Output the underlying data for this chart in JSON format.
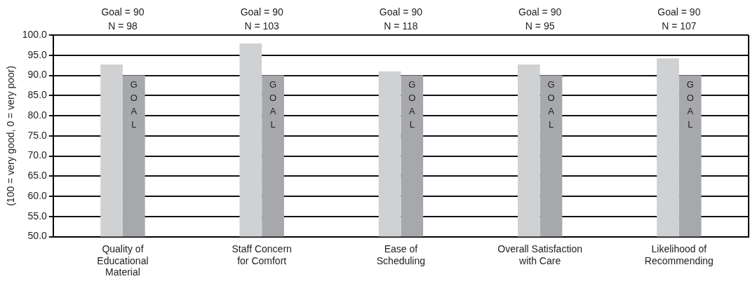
{
  "chart_data": {
    "type": "bar",
    "ylabel": "(100 = very good, 0 = very poor)",
    "categories": [
      "Quality of\nEducational\nMaterial",
      "Staff Concern\nfor Comfort",
      "Ease of\nScheduling",
      "Overall Satisfaction\nwith Care",
      "Likelihood of\nRecommending"
    ],
    "series": [
      {
        "color": "#d0d1d3",
        "values": [
          92.7,
          97.9,
          91.0,
          92.7,
          94.2
        ]
      },
      {
        "name": "GOAL",
        "color": "#a7a8ab",
        "values": [
          90,
          90,
          90,
          90,
          90
        ]
      }
    ],
    "ylim": [
      50,
      100
    ],
    "yticks": [
      {
        "value": 50,
        "label": "50.0"
      },
      {
        "value": 55,
        "label": "55.0"
      },
      {
        "value": 60,
        "label": "60.0"
      },
      {
        "value": 65,
        "label": "65.0"
      },
      {
        "value": 70,
        "label": "70.0"
      },
      {
        "value": 75,
        "label": "75.0"
      },
      {
        "value": 80,
        "label": "80.0"
      },
      {
        "value": 85,
        "label": "85.0"
      },
      {
        "value": 90,
        "label": "90.0"
      },
      {
        "value": 95,
        "label": "95.0"
      },
      {
        "value": 100,
        "label": "100.0"
      }
    ],
    "grid": "y",
    "legend": false,
    "annotations": [
      "Goal = 90\nN = 98",
      "Goal = 90\nN = 103",
      "Goal = 90\nN = 118",
      "Goal = 90\nN = 95",
      "Goal = 90\nN = 107"
    ]
  }
}
